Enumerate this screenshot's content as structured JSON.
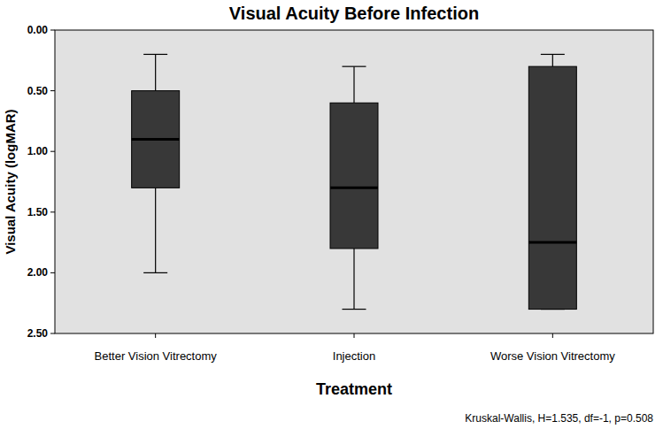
{
  "chart_data": {
    "type": "box",
    "title": "Visual Acuity Before Infection",
    "x_label": "Treatment",
    "y_label": "Visual Acuity (logMAR)",
    "annotation": "Kruskal-Wallis, H=1.535, df=-1, p=0.508",
    "categories": [
      "Better Vision Vitrectomy",
      "Injection",
      "Worse Vision Vitrectomy"
    ],
    "boxes": [
      {
        "min": 0.2,
        "q1": 0.5,
        "median": 0.9,
        "q3": 1.3,
        "max": 2.0
      },
      {
        "min": 0.3,
        "q1": 0.6,
        "median": 1.3,
        "q3": 1.8,
        "max": 2.3
      },
      {
        "min": 0.2,
        "q1": 0.3,
        "median": 1.75,
        "q3": 2.3,
        "max": 2.3
      }
    ],
    "color": "#383838",
    "ylim": [
      2.5,
      0
    ],
    "yticks": [
      {
        "value": 0,
        "label": "0.00"
      },
      {
        "value": 0.5,
        "label": "0.50"
      },
      {
        "value": 1,
        "label": "1.00"
      },
      {
        "value": 1.5,
        "label": "1.50"
      },
      {
        "value": 2,
        "label": "2.00"
      },
      {
        "value": 2.5,
        "label": "2.50"
      }
    ],
    "grid": false
  }
}
